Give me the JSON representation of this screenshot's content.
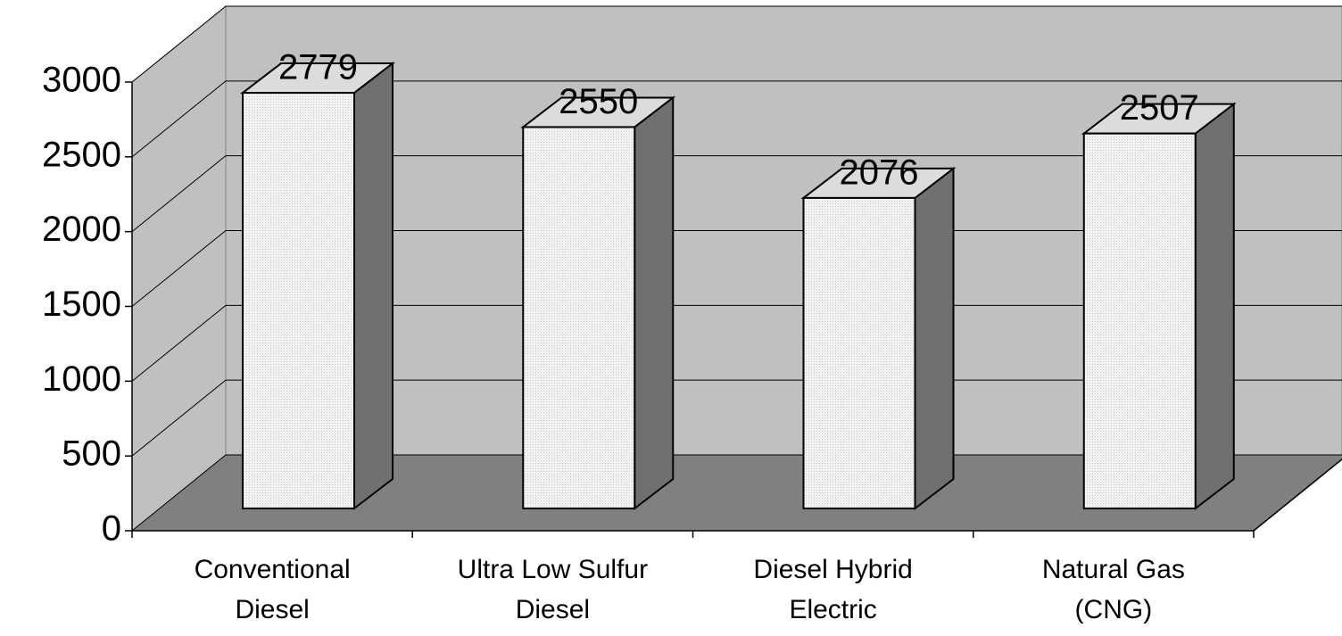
{
  "chart_data": {
    "type": "bar3d",
    "categories": [
      "Conventional Diesel",
      "Ultra Low Sulfur Diesel",
      "Diesel Hybrid Electric",
      "Natural Gas (CNG)"
    ],
    "values": [
      2779,
      2550,
      2076,
      2507
    ],
    "color": "#ececec",
    "ylim": [
      0,
      3000
    ],
    "yticks": [
      0,
      500,
      1000,
      1500,
      2000,
      2500,
      3000
    ],
    "grid": true
  }
}
